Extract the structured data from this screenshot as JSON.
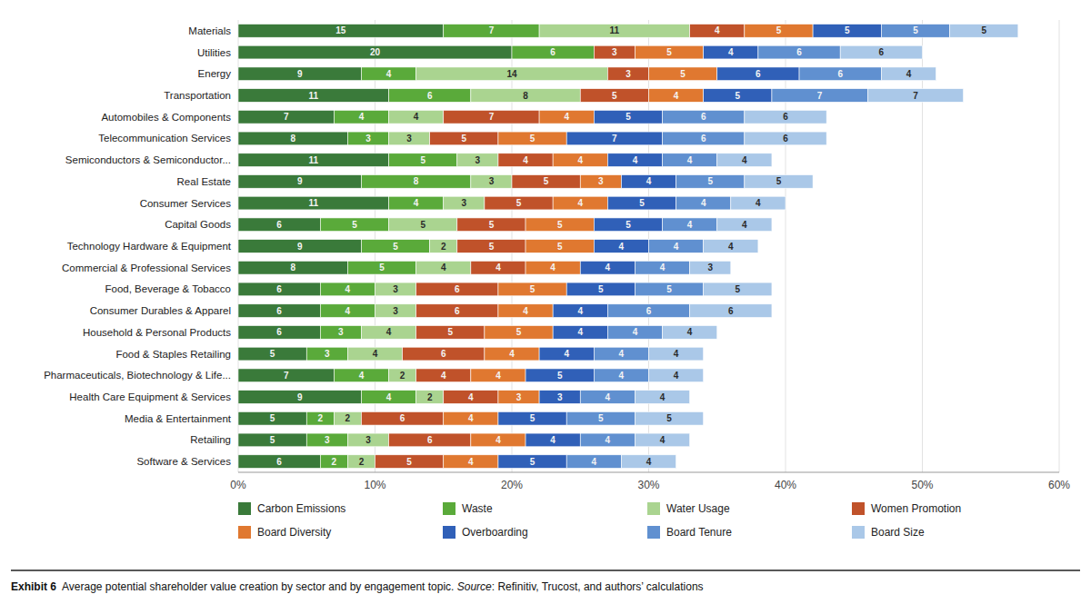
{
  "chart_data": {
    "type": "bar",
    "orientation": "horizontal",
    "stacked": true,
    "data_labels": true,
    "grid": true,
    "legend": "bottom",
    "categories": [
      "Materials",
      "Utilities",
      "Energy",
      "Transportation",
      "Automobiles & Components",
      "Telecommunication Services",
      "Semiconductors & Semiconductor...",
      "Real Estate",
      "Consumer Services",
      "Capital Goods",
      "Technology Hardware & Equipment",
      "Commercial & Professional Services",
      "Food, Beverage & Tobacco",
      "Consumer Durables & Apparel",
      "Household & Personal Products",
      "Food & Staples Retailing",
      "Pharmaceuticals, Biotechnology & Life...",
      "Health Care Equipment & Services",
      "Media & Entertainment",
      "Retailing",
      "Software & Services"
    ],
    "series": [
      {
        "name": "Carbon Emissions",
        "color": "#3a7a3a",
        "values": [
          15,
          20,
          9,
          11,
          7,
          8,
          11,
          9,
          11,
          6,
          9,
          8,
          6,
          6,
          6,
          5,
          7,
          9,
          5,
          5,
          6
        ]
      },
      {
        "name": "Waste",
        "color": "#5aaa3a",
        "values": [
          7,
          6,
          4,
          6,
          4,
          3,
          5,
          8,
          4,
          5,
          5,
          5,
          4,
          4,
          3,
          3,
          4,
          4,
          2,
          3,
          2
        ]
      },
      {
        "name": "Water Usage",
        "color": "#aad490",
        "values": [
          11,
          0,
          14,
          8,
          4,
          3,
          3,
          3,
          3,
          5,
          2,
          4,
          3,
          3,
          4,
          4,
          2,
          2,
          2,
          3,
          2
        ]
      },
      {
        "name": "Women Promotion",
        "color": "#c0522a",
        "values": [
          4,
          3,
          3,
          5,
          7,
          5,
          4,
          5,
          5,
          5,
          5,
          4,
          6,
          6,
          5,
          6,
          4,
          4,
          6,
          6,
          5
        ]
      },
      {
        "name": "Board Diversity",
        "color": "#e07830",
        "values": [
          5,
          5,
          5,
          4,
          4,
          5,
          4,
          3,
          4,
          5,
          5,
          4,
          5,
          4,
          5,
          4,
          4,
          3,
          4,
          4,
          4
        ]
      },
      {
        "name": "Overboarding",
        "color": "#3060b8",
        "values": [
          5,
          4,
          6,
          5,
          5,
          7,
          4,
          4,
          5,
          5,
          4,
          4,
          5,
          4,
          4,
          4,
          5,
          3,
          5,
          4,
          5
        ]
      },
      {
        "name": "Board Tenure",
        "color": "#6090d0",
        "values": [
          5,
          6,
          6,
          7,
          6,
          6,
          4,
          5,
          4,
          4,
          4,
          4,
          5,
          6,
          4,
          4,
          4,
          4,
          5,
          4,
          4
        ]
      },
      {
        "name": "Board Size",
        "color": "#aac8e8",
        "values": [
          5,
          6,
          4,
          7,
          6,
          6,
          4,
          5,
          4,
          4,
          4,
          3,
          5,
          6,
          4,
          4,
          4,
          4,
          5,
          4,
          4
        ]
      }
    ],
    "xlim": [
      0,
      60
    ],
    "xticks": [
      {
        "value": 0,
        "label": "0%"
      },
      {
        "value": 10,
        "label": "10%"
      },
      {
        "value": 20,
        "label": "20%"
      },
      {
        "value": 30,
        "label": "30%"
      },
      {
        "value": 40,
        "label": "40%"
      },
      {
        "value": 50,
        "label": "50%"
      },
      {
        "value": 60,
        "label": "60%"
      }
    ],
    "annotations": [
      "Exhibit 6",
      "  Average potential shareholder value creation by sector and by engagement topic. ",
      "Source",
      ": Refinitiv, Trucost, and authors’ calculations"
    ]
  }
}
